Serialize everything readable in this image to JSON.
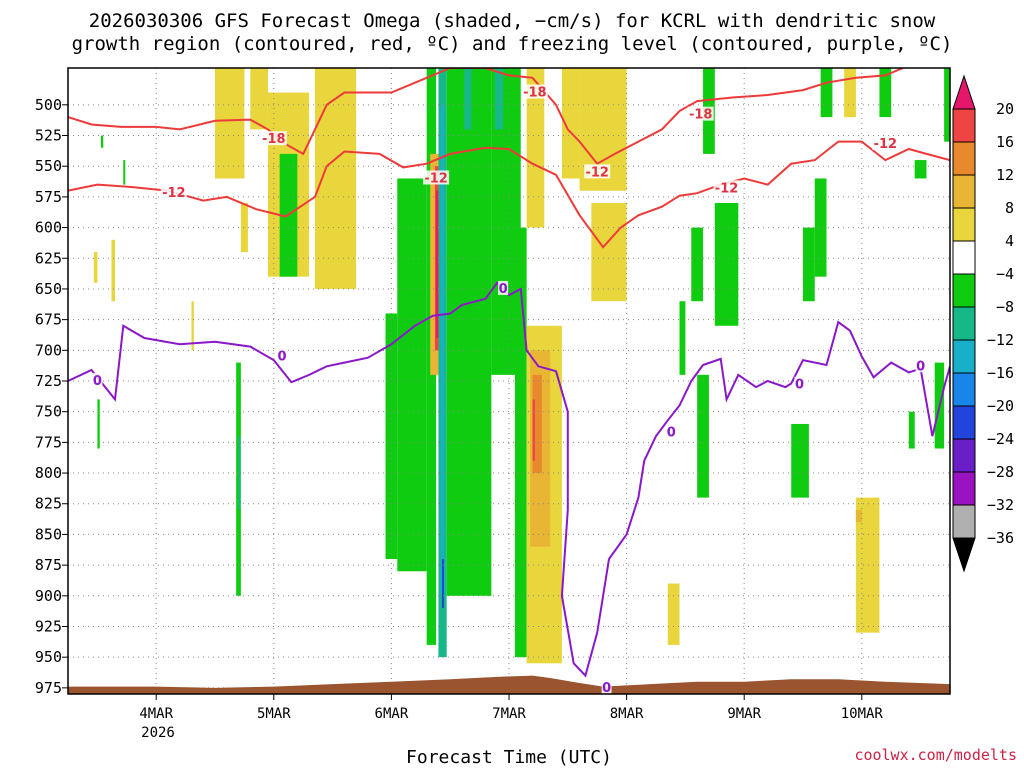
{
  "chart_data": {
    "type": "heatmap",
    "title_lines": [
      "2026030306 GFS Forecast Omega (shaded, −cm/s) for KCRL with dendritic snow",
      "growth region (contoured, red, ºC) and freezing level (contoured, purple, ºC)"
    ],
    "xlabel": "Forecast Time (UTC)",
    "credit": "coolwx.com/modelts",
    "x_ticks": [
      "4MAR",
      "5MAR",
      "6MAR",
      "7MAR",
      "8MAR",
      "9MAR",
      "10MAR"
    ],
    "x_year": "2026",
    "x_range_days": [
      3.25,
      10.75
    ],
    "y_ticks": [
      500,
      525,
      550,
      575,
      600,
      625,
      650,
      675,
      700,
      725,
      750,
      775,
      800,
      825,
      850,
      875,
      900,
      925,
      950,
      975
    ],
    "y_range_hpa": [
      470,
      980
    ],
    "colorbar": {
      "labels": [
        20,
        16,
        12,
        8,
        4,
        -4,
        -8,
        -12,
        -16,
        -20,
        -24,
        -28,
        -32,
        -36
      ],
      "colors": [
        "#e6176b",
        "#ee4444",
        "#e8892e",
        "#e9b534",
        "#e9d63c",
        "#ffffff",
        "#10cc10",
        "#16b889",
        "#18b0c8",
        "#1a85e8",
        "#2244dd",
        "#6a1ec8",
        "#9913c0",
        "#b0b0b0",
        "#000000"
      ]
    },
    "omega_regions": [
      {
        "day": [
          3.47,
          3.5
        ],
        "p": [
          620,
          645
        ],
        "v": 4
      },
      {
        "day": [
          3.62,
          3.65
        ],
        "p": [
          610,
          660
        ],
        "v": 4
      },
      {
        "day": [
          4.3,
          4.32
        ],
        "p": [
          660,
          700
        ],
        "v": 4
      },
      {
        "day": [
          3.72,
          3.73
        ],
        "p": [
          545,
          565
        ],
        "v": -6
      },
      {
        "day": [
          3.53,
          3.55
        ],
        "p": [
          525,
          535
        ],
        "v": -6
      },
      {
        "day": [
          3.5,
          3.52
        ],
        "p": [
          740,
          780
        ],
        "v": -6
      },
      {
        "day": [
          4.5,
          4.75
        ],
        "p": [
          470,
          560
        ],
        "v": 5
      },
      {
        "day": [
          4.72,
          4.78
        ],
        "p": [
          580,
          620
        ],
        "v": 4
      },
      {
        "day": [
          4.68,
          4.72
        ],
        "p": [
          710,
          900
        ],
        "v": -6
      },
      {
        "day": [
          4.7,
          4.71
        ],
        "p": [
          770,
          830
        ],
        "v": -10
      },
      {
        "day": [
          4.8,
          4.95
        ],
        "p": [
          470,
          520
        ],
        "v": 4
      },
      {
        "day": [
          4.95,
          5.3
        ],
        "p": [
          490,
          640
        ],
        "v": 5
      },
      {
        "day": [
          5.05,
          5.2
        ],
        "p": [
          540,
          640
        ],
        "v": -6
      },
      {
        "day": [
          5.35,
          5.7
        ],
        "p": [
          470,
          650
        ],
        "v": 5
      },
      {
        "day": [
          5.4,
          5.6
        ],
        "p": [
          470,
          520
        ],
        "v": 7
      },
      {
        "day": [
          5.95,
          6.05
        ],
        "p": [
          670,
          870
        ],
        "v": -6
      },
      {
        "day": [
          6.05,
          6.3
        ],
        "p": [
          560,
          880
        ],
        "v": -6
      },
      {
        "day": [
          6.3,
          6.38
        ],
        "p": [
          470,
          940
        ],
        "v": -6
      },
      {
        "day": [
          6.33,
          6.4
        ],
        "p": [
          540,
          720
        ],
        "v": 8
      },
      {
        "day": [
          6.37,
          6.4
        ],
        "p": [
          550,
          700
        ],
        "v": 18
      },
      {
        "day": [
          6.38,
          6.4
        ],
        "p": [
          570,
          690
        ],
        "v": 22
      },
      {
        "day": [
          6.4,
          6.47
        ],
        "p": [
          470,
          950
        ],
        "v": -10
      },
      {
        "day": [
          6.42,
          6.45
        ],
        "p": [
          500,
          900
        ],
        "v": -14
      },
      {
        "day": [
          6.43,
          6.44
        ],
        "p": [
          870,
          910
        ],
        "v": -22
      },
      {
        "day": [
          6.47,
          6.85
        ],
        "p": [
          470,
          900
        ],
        "v": -6
      },
      {
        "day": [
          6.62,
          6.68
        ],
        "p": [
          470,
          520
        ],
        "v": -10
      },
      {
        "day": [
          6.85,
          7.1
        ],
        "p": [
          470,
          720
        ],
        "v": -6
      },
      {
        "day": [
          6.88,
          6.95
        ],
        "p": [
          470,
          520
        ],
        "v": -12
      },
      {
        "day": [
          7.05,
          7.15
        ],
        "p": [
          600,
          950
        ],
        "v": -6
      },
      {
        "day": [
          7.15,
          7.3
        ],
        "p": [
          470,
          600
        ],
        "v": 5
      },
      {
        "day": [
          7.15,
          7.45
        ],
        "p": [
          680,
          955
        ],
        "v": 6
      },
      {
        "day": [
          7.18,
          7.35
        ],
        "p": [
          700,
          860
        ],
        "v": 10
      },
      {
        "day": [
          7.2,
          7.28
        ],
        "p": [
          720,
          800
        ],
        "v": 15
      },
      {
        "day": [
          7.2,
          7.22
        ],
        "p": [
          740,
          790
        ],
        "v": 19
      },
      {
        "day": [
          7.45,
          7.6
        ],
        "p": [
          470,
          560
        ],
        "v": 7
      },
      {
        "day": [
          7.6,
          8.0
        ],
        "p": [
          470,
          570
        ],
        "v": 5
      },
      {
        "day": [
          7.7,
          8.0
        ],
        "p": [
          580,
          660
        ],
        "v": 5
      },
      {
        "day": [
          8.35,
          8.45
        ],
        "p": [
          890,
          940
        ],
        "v": 5
      },
      {
        "day": [
          8.45,
          8.5
        ],
        "p": [
          660,
          720
        ],
        "v": -6
      },
      {
        "day": [
          8.55,
          8.65
        ],
        "p": [
          600,
          660
        ],
        "v": -6
      },
      {
        "day": [
          8.65,
          8.75
        ],
        "p": [
          470,
          540
        ],
        "v": -6
      },
      {
        "day": [
          8.6,
          8.7
        ],
        "p": [
          720,
          820
        ],
        "v": -6
      },
      {
        "day": [
          8.75,
          8.95
        ],
        "p": [
          580,
          680
        ],
        "v": -6
      },
      {
        "day": [
          9.4,
          9.55
        ],
        "p": [
          760,
          820
        ],
        "v": -6
      },
      {
        "day": [
          9.5,
          9.6
        ],
        "p": [
          600,
          660
        ],
        "v": -6
      },
      {
        "day": [
          9.6,
          9.7
        ],
        "p": [
          560,
          640
        ],
        "v": -6
      },
      {
        "day": [
          9.65,
          9.75
        ],
        "p": [
          470,
          510
        ],
        "v": -6
      },
      {
        "day": [
          9.85,
          9.95
        ],
        "p": [
          470,
          510
        ],
        "v": 5
      },
      {
        "day": [
          9.95,
          10.15
        ],
        "p": [
          820,
          930
        ],
        "v": 5
      },
      {
        "day": [
          9.95,
          10.0
        ],
        "p": [
          830,
          840
        ],
        "v": 10
      },
      {
        "day": [
          10.15,
          10.25
        ],
        "p": [
          470,
          510
        ],
        "v": -6
      },
      {
        "day": [
          10.4,
          10.45
        ],
        "p": [
          750,
          780
        ],
        "v": -6
      },
      {
        "day": [
          10.45,
          10.55
        ],
        "p": [
          545,
          560
        ],
        "v": -6
      },
      {
        "day": [
          10.62,
          10.7
        ],
        "p": [
          710,
          780
        ],
        "v": -6
      },
      {
        "day": [
          10.7,
          10.75
        ],
        "p": [
          470,
          530
        ],
        "v": -6
      }
    ],
    "dgz_upper_line": [
      [
        3.25,
        510
      ],
      [
        3.45,
        516
      ],
      [
        3.7,
        518
      ],
      [
        4.0,
        518
      ],
      [
        4.2,
        520
      ],
      [
        4.5,
        513
      ],
      [
        4.8,
        512
      ],
      [
        4.95,
        520
      ],
      [
        5.1,
        532
      ],
      [
        5.25,
        540
      ],
      [
        5.35,
        520
      ],
      [
        5.45,
        500
      ],
      [
        5.6,
        490
      ],
      [
        6.0,
        490
      ],
      [
        6.3,
        478
      ],
      [
        6.5,
        470
      ],
      [
        6.8,
        470
      ],
      [
        7.0,
        476
      ],
      [
        7.2,
        478
      ],
      [
        7.4,
        500
      ],
      [
        7.5,
        520
      ],
      [
        7.6,
        530
      ],
      [
        7.75,
        548
      ],
      [
        7.9,
        540
      ],
      [
        8.1,
        530
      ],
      [
        8.3,
        520
      ],
      [
        8.45,
        505
      ],
      [
        8.6,
        497
      ],
      [
        8.9,
        494
      ],
      [
        9.2,
        492
      ],
      [
        9.5,
        488
      ],
      [
        9.7,
        482
      ],
      [
        9.95,
        478
      ],
      [
        10.2,
        476
      ],
      [
        10.35,
        470
      ]
    ],
    "dgz_lower_line": [
      [
        3.25,
        570
      ],
      [
        3.5,
        565
      ],
      [
        3.8,
        567
      ],
      [
        4.1,
        570
      ],
      [
        4.4,
        578
      ],
      [
        4.6,
        575
      ],
      [
        4.85,
        585
      ],
      [
        5.1,
        591
      ],
      [
        5.35,
        575
      ],
      [
        5.45,
        550
      ],
      [
        5.6,
        538
      ],
      [
        5.9,
        540
      ],
      [
        6.1,
        551
      ],
      [
        6.3,
        548
      ],
      [
        6.5,
        540
      ],
      [
        6.8,
        535
      ],
      [
        7.0,
        536
      ],
      [
        7.2,
        548
      ],
      [
        7.4,
        557
      ],
      [
        7.6,
        590
      ],
      [
        7.8,
        616
      ],
      [
        7.95,
        600
      ],
      [
        8.1,
        590
      ],
      [
        8.3,
        583
      ],
      [
        8.45,
        574
      ],
      [
        8.6,
        572
      ],
      [
        8.8,
        565
      ],
      [
        9.0,
        560
      ],
      [
        9.2,
        565
      ],
      [
        9.4,
        548
      ],
      [
        9.6,
        545
      ],
      [
        9.8,
        530
      ],
      [
        10.0,
        530
      ],
      [
        10.2,
        545
      ],
      [
        10.4,
        536
      ],
      [
        10.55,
        540
      ],
      [
        10.75,
        545
      ]
    ],
    "freezing_line": [
      [
        3.25,
        725
      ],
      [
        3.45,
        716
      ],
      [
        3.65,
        740
      ],
      [
        3.72,
        680
      ],
      [
        3.9,
        690
      ],
      [
        4.2,
        695
      ],
      [
        4.5,
        693
      ],
      [
        4.8,
        697
      ],
      [
        5.0,
        708
      ],
      [
        5.15,
        726
      ],
      [
        5.3,
        720
      ],
      [
        5.45,
        713
      ],
      [
        5.6,
        710
      ],
      [
        5.8,
        706
      ],
      [
        6.0,
        695
      ],
      [
        6.2,
        680
      ],
      [
        6.35,
        672
      ],
      [
        6.5,
        670
      ],
      [
        6.6,
        663
      ],
      [
        6.8,
        658
      ],
      [
        6.9,
        645
      ],
      [
        7.0,
        655
      ],
      [
        7.1,
        650
      ],
      [
        7.15,
        700
      ],
      [
        7.25,
        713
      ],
      [
        7.4,
        717
      ],
      [
        7.5,
        750
      ],
      [
        7.5,
        830
      ],
      [
        7.45,
        900
      ],
      [
        7.55,
        955
      ],
      [
        7.65,
        965
      ],
      [
        7.75,
        930
      ],
      [
        7.8,
        900
      ],
      [
        7.85,
        870
      ],
      [
        8.0,
        850
      ],
      [
        8.1,
        820
      ],
      [
        8.15,
        790
      ],
      [
        8.25,
        770
      ],
      [
        8.35,
        757
      ],
      [
        8.45,
        745
      ],
      [
        8.55,
        725
      ],
      [
        8.65,
        712
      ],
      [
        8.8,
        707
      ],
      [
        8.85,
        740
      ],
      [
        8.95,
        720
      ],
      [
        9.1,
        730
      ],
      [
        9.2,
        725
      ],
      [
        9.35,
        730
      ],
      [
        9.4,
        727
      ],
      [
        9.5,
        708
      ],
      [
        9.7,
        712
      ],
      [
        9.8,
        677
      ],
      [
        9.9,
        684
      ],
      [
        10.0,
        705
      ],
      [
        10.1,
        722
      ],
      [
        10.25,
        710
      ],
      [
        10.4,
        718
      ],
      [
        10.5,
        715
      ],
      [
        10.6,
        770
      ],
      [
        10.7,
        730
      ],
      [
        10.75,
        713
      ]
    ],
    "contour_labels": [
      {
        "text": "-18",
        "day": 5.0,
        "p": 528,
        "color": "#dd3344"
      },
      {
        "text": "-18",
        "day": 7.22,
        "p": 490,
        "color": "#dd3344"
      },
      {
        "text": "-18",
        "day": 8.63,
        "p": 508,
        "color": "#dd3344"
      },
      {
        "text": "-12",
        "day": 4.15,
        "p": 572,
        "color": "#dd3344"
      },
      {
        "text": "-12",
        "day": 6.38,
        "p": 560,
        "color": "#dd3344"
      },
      {
        "text": "-12",
        "day": 7.75,
        "p": 555,
        "color": "#dd3344"
      },
      {
        "text": "-12",
        "day": 8.85,
        "p": 568,
        "color": "#dd3344"
      },
      {
        "text": "-12",
        "day": 10.2,
        "p": 532,
        "color": "#dd3344"
      },
      {
        "text": "0",
        "day": 3.5,
        "p": 725,
        "color": "#8a18c8"
      },
      {
        "text": "0",
        "day": 5.07,
        "p": 705,
        "color": "#8a18c8"
      },
      {
        "text": "0",
        "day": 6.95,
        "p": 650,
        "color": "#8a18c8"
      },
      {
        "text": "0",
        "day": 7.83,
        "p": 975,
        "color": "#8a18c8"
      },
      {
        "text": "0",
        "day": 8.38,
        "p": 767,
        "color": "#8a18c8"
      },
      {
        "text": "0",
        "day": 9.47,
        "p": 728,
        "color": "#8a18c8"
      },
      {
        "text": "0",
        "day": 10.5,
        "p": 713,
        "color": "#8a18c8"
      }
    ],
    "terrain": [
      [
        3.25,
        974
      ],
      [
        4.0,
        974
      ],
      [
        4.5,
        975
      ],
      [
        5.0,
        974
      ],
      [
        5.5,
        972
      ],
      [
        6.0,
        970
      ],
      [
        6.5,
        968
      ],
      [
        6.9,
        966
      ],
      [
        7.2,
        965
      ],
      [
        7.35,
        967
      ],
      [
        7.6,
        971
      ],
      [
        7.8,
        974
      ],
      [
        8.2,
        972
      ],
      [
        8.6,
        970
      ],
      [
        9.0,
        970
      ],
      [
        9.4,
        968
      ],
      [
        9.8,
        968
      ],
      [
        10.2,
        970
      ],
      [
        10.75,
        972
      ]
    ]
  }
}
